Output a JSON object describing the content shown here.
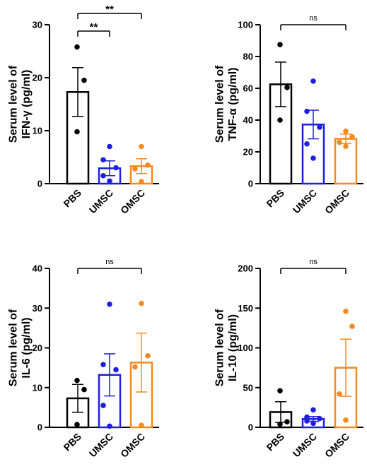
{
  "colors": {
    "PBS": "#000000",
    "UMSC": "#1f1fe0",
    "OMSC": "#f58a1f"
  },
  "chart_data": [
    {
      "type": "bar",
      "ylabel_line1": "Serum level of",
      "ylabel_line2": "IFN-γ (pg/ml)",
      "categories": [
        "PBS",
        "UMSC",
        "OMSC"
      ],
      "ylim": [
        0,
        30
      ],
      "yticks": [
        0,
        10,
        20,
        30
      ],
      "means": [
        17.3,
        2.9,
        3.3
      ],
      "sem": [
        4.6,
        1.4,
        1.4
      ],
      "points": [
        [
          25.8,
          19.5,
          9.8
        ],
        [
          7.0,
          4.5,
          3.0,
          1.5,
          0.5
        ],
        [
          7.0,
          3.5,
          2.8,
          0.4
        ]
      ],
      "significance": [
        {
          "from": 0,
          "to": 1,
          "label": "**"
        },
        {
          "from": 0,
          "to": 2,
          "label": "**"
        }
      ]
    },
    {
      "type": "bar",
      "ylabel_line1": "Serum level of",
      "ylabel_line2": "TNF-α (pg/ml)",
      "categories": [
        "PBS",
        "UMSC",
        "OMSC"
      ],
      "ylim": [
        0,
        100
      ],
      "yticks": [
        0,
        20,
        40,
        60,
        80,
        100
      ],
      "means": [
        62.5,
        37.2,
        28.2
      ],
      "sem": [
        14.0,
        9.0,
        3.0
      ],
      "points": [
        [
          87.5,
          60.5,
          40.0
        ],
        [
          64.5,
          45.5,
          35.5,
          25.0,
          16.0
        ],
        [
          33.0,
          29.5,
          26.0,
          23.5
        ]
      ],
      "significance": [
        {
          "from": 0,
          "to": 2,
          "label": "ns"
        }
      ]
    },
    {
      "type": "bar",
      "ylabel_line1": "Serum level of",
      "ylabel_line2": "IL-6 (pg/ml)",
      "categories": [
        "PBS",
        "UMSC",
        "OMSC"
      ],
      "ylim": [
        0,
        40
      ],
      "yticks": [
        0,
        10,
        20,
        30,
        40
      ],
      "means": [
        7.3,
        13.2,
        16.3
      ],
      "sem": [
        3.5,
        5.3,
        7.4
      ],
      "points": [
        [
          11.8,
          9.5,
          0.7
        ],
        [
          31.0,
          15.8,
          14.5,
          5.5,
          0.3
        ],
        [
          31.2,
          18.0,
          15.2,
          0.5
        ]
      ],
      "significance": [
        {
          "from": 0,
          "to": 2,
          "label": "ns"
        }
      ]
    },
    {
      "type": "bar",
      "ylabel_line1": "Serum level of",
      "ylabel_line2": "IL-10 (pg/ml)",
      "categories": [
        "PBS",
        "UMSC",
        "OMSC"
      ],
      "ylim": [
        0,
        200
      ],
      "yticks": [
        0,
        50,
        100,
        150,
        200
      ],
      "means": [
        19.2,
        10.5,
        75.0
      ],
      "sem": [
        13.0,
        3.0,
        36.0
      ],
      "points": [
        [
          46.0,
          7.0,
          4.0
        ],
        [
          22.0,
          13.0,
          11.0,
          8.0,
          5.0
        ],
        [
          146.0,
          127.0,
          42.0,
          9.0
        ]
      ],
      "significance": [
        {
          "from": 0,
          "to": 2,
          "label": "ns"
        }
      ]
    }
  ]
}
